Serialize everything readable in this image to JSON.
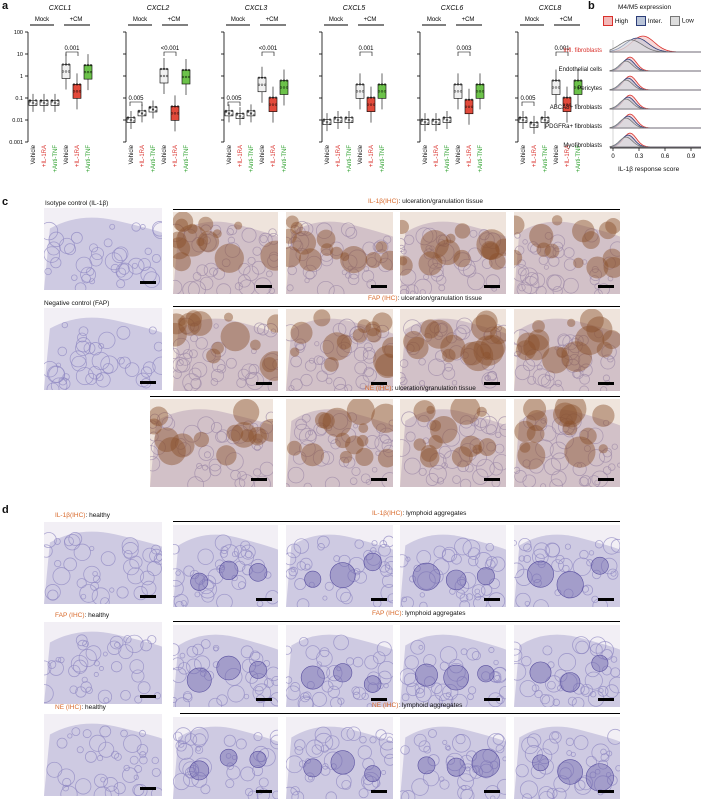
{
  "panel_a": {
    "letter": "a",
    "group_labels": {
      "mock": "Mock",
      "cm": "+CM"
    },
    "y_ticks": [
      "100",
      "10",
      "1",
      "0.1",
      "0.01",
      "0.001"
    ],
    "conditions": [
      "Vehicle",
      "+IL-1RA",
      "+Anti-TNF"
    ],
    "condition_colors": [
      "#111111",
      "#d9302b",
      "#2fa12f"
    ],
    "charts": [
      {
        "gene": "CXCL1",
        "pvalue": "0.001"
      },
      {
        "gene": "CXCL2",
        "pvalue": "<0.001",
        "pvalue2": "0.005"
      },
      {
        "gene": "CXCL3",
        "pvalue": "<0.001",
        "pvalue2": "0.005"
      },
      {
        "gene": "CXCL5",
        "pvalue": "0.001"
      },
      {
        "gene": "CXCL6",
        "pvalue": "0.003"
      },
      {
        "gene": "CXCL8",
        "pvalue": "0.001",
        "pvalue2": "0.005"
      }
    ]
  },
  "panel_b": {
    "letter": "b",
    "title": "M4/M5 expression",
    "legend": [
      "High",
      "Inter.",
      "Low"
    ],
    "rows": [
      "Infl. fibroblasts",
      "Endothelial cells",
      "Pericytes",
      "ABCA8+ fibroblasts",
      "PDGFRa+ fibroblasts",
      "Myofibroblasts"
    ],
    "x_ticks": [
      "0",
      "0.3",
      "0.6",
      "0.9"
    ],
    "xlabel": "IL-1β response score"
  },
  "panel_c": {
    "letter": "c",
    "isotype_label": "Isotype control (IL-1β)",
    "negative_label": "Negative control (FAP)",
    "row_titles": [
      {
        "marker": "IL-1β(IHC)",
        "rest": ": ulceration/granulation tissue"
      },
      {
        "marker": "FAP (IHC)",
        "rest": ": ulceration/granulation tissue"
      },
      {
        "marker": "NE (IHC)",
        "rest": ": ulceration/granulation tissue"
      }
    ]
  },
  "panel_d": {
    "letter": "d",
    "rows": [
      {
        "marker": "IL-1β(IHC)",
        "healthy": ": healthy",
        "rest": ": lymphoid aggregates"
      },
      {
        "marker": "FAP (IHC)",
        "healthy": ": healthy",
        "rest": ": lymphoid aggregates"
      },
      {
        "marker": "NE (IHC)",
        "healthy": ": healthy",
        "rest": ": lymphoid aggregates"
      }
    ]
  }
}
